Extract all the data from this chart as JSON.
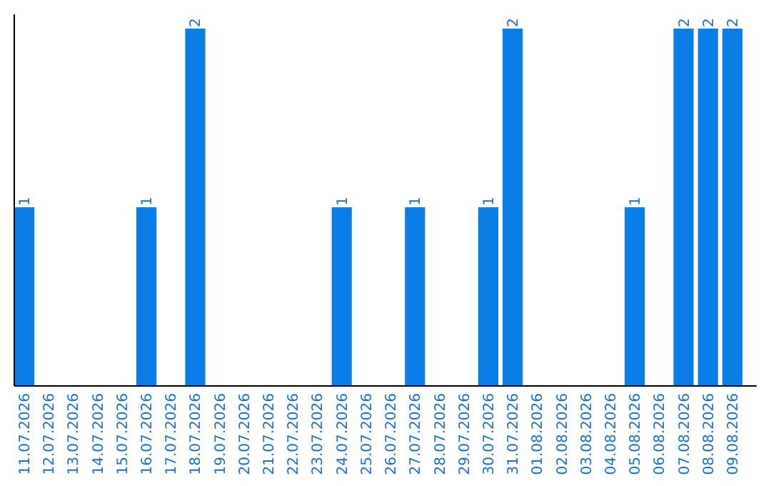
{
  "chart_data": {
    "type": "bar",
    "categories": [
      "11.07.2026",
      "12.07.2026",
      "13.07.2026",
      "14.07.2026",
      "15.07.2026",
      "16.07.2026",
      "17.07.2026",
      "18.07.2026",
      "19.07.2026",
      "20.07.2026",
      "21.07.2026",
      "22.07.2026",
      "23.07.2026",
      "24.07.2026",
      "25.07.2026",
      "26.07.2026",
      "27.07.2026",
      "28.07.2026",
      "29.07.2026",
      "30.07.2026",
      "31.07.2026",
      "01.08.2026",
      "02.08.2026",
      "03.08.2026",
      "04.08.2026",
      "05.08.2026",
      "06.08.2026",
      "07.08.2026",
      "08.08.2026",
      "09.08.2026"
    ],
    "values": [
      1,
      0,
      0,
      0,
      0,
      1,
      0,
      2,
      0,
      0,
      0,
      0,
      0,
      1,
      0,
      0,
      1,
      0,
      0,
      1,
      2,
      0,
      0,
      0,
      0,
      1,
      0,
      2,
      2,
      2
    ],
    "value_labels": [
      "1",
      null,
      null,
      null,
      null,
      "1",
      null,
      "2",
      null,
      null,
      null,
      null,
      null,
      "1",
      null,
      null,
      "1",
      null,
      null,
      "1",
      "2",
      null,
      null,
      null,
      null,
      "1",
      null,
      "2",
      "2",
      "2"
    ],
    "color": "#0a7ee6",
    "ylim": [
      0,
      2.08
    ],
    "tick_labels": "x"
  }
}
